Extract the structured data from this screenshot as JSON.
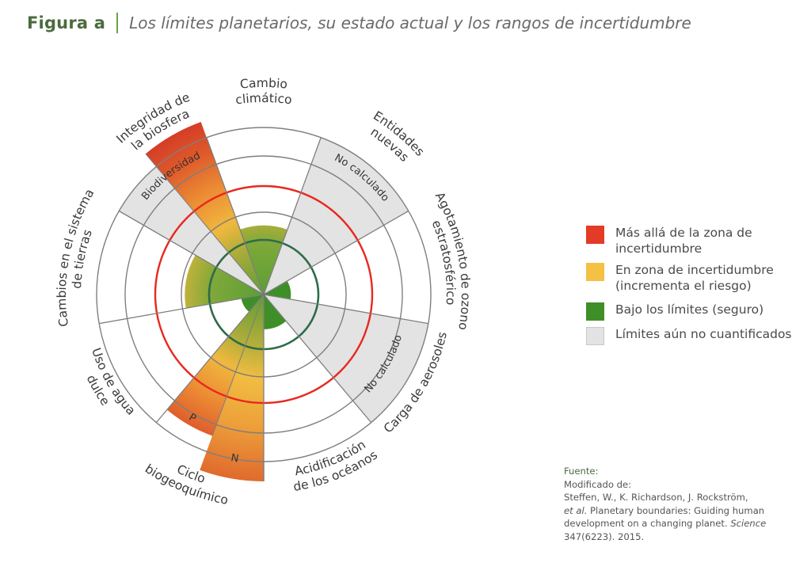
{
  "header": {
    "figure_label": "Figura a",
    "title": "Los límites planetarios, su estado actual y los rangos de incertidumbre"
  },
  "colors": {
    "beyond": "#d93a26",
    "uncertainty": "#f2bf3f",
    "safe": "#3f8f28",
    "not_quantified": "#e3e3e3",
    "boundary_ring": "#e8281e",
    "safe_ring": "#2e6b4a",
    "grid": "#7f7f7f",
    "title_green": "#4a6b3f"
  },
  "diagram": {
    "sectors": [
      {
        "id": "climate",
        "label_lines": [
          "Cambio",
          "climático"
        ],
        "status": "uncertainty",
        "level": 0.47
      },
      {
        "id": "novel-entities",
        "label_lines": [
          "Entidades",
          "nuevas"
        ],
        "status": "not_quantified",
        "inner_label": "No calculado"
      },
      {
        "id": "ozone",
        "label_lines": [
          "Agotamiento de ozono",
          "estratosférico"
        ],
        "status": "safe",
        "level": 0.25
      },
      {
        "id": "aerosols",
        "label_lines": [
          "Carga de aerosoles"
        ],
        "status": "not_quantified",
        "inner_label": "No calculado"
      },
      {
        "id": "ocean-acidification",
        "label_lines": [
          "Acidificación",
          "de los océanos"
        ],
        "status": "safe",
        "level": 0.32
      },
      {
        "id": "biogeochemical",
        "label_lines": [
          "Ciclo",
          "biogeoquímico"
        ],
        "status": "beyond",
        "sub": [
          {
            "label": "N",
            "level": 1.12
          },
          {
            "label": "P",
            "level": 0.9
          }
        ]
      },
      {
        "id": "freshwater",
        "label_lines": [
          "Uso de agua",
          "dulce"
        ],
        "status": "safe",
        "level": 0.21
      },
      {
        "id": "land-system",
        "label_lines": [
          "Cambios en el sistema",
          "de tierras"
        ],
        "status": "uncertainty",
        "level": 0.56
      },
      {
        "id": "biosphere-integrity",
        "label_lines": [
          "Integridad de",
          "la biosfera"
        ],
        "status": "beyond",
        "sub": [
          {
            "label": "Biodiversidad",
            "level": 1.1
          }
        ]
      }
    ]
  },
  "legend": {
    "items": [
      {
        "status": "beyond",
        "label_lines": [
          "Más allá de la zona de",
          "incertidumbre"
        ]
      },
      {
        "status": "uncertainty",
        "label_lines": [
          "En zona de incertidumbre",
          "(incrementa el riesgo)"
        ]
      },
      {
        "status": "safe",
        "label_lines": [
          "Bajo los límites (seguro)"
        ]
      },
      {
        "status": "not_quantified",
        "label_lines": [
          "Límites aún no cuantificados"
        ]
      }
    ]
  },
  "source": {
    "heading": "Fuente:",
    "line1": "Modificado de:",
    "line2": "Steffen, W., K. Richardson, J. Rockström,",
    "line3_italic": "et al.",
    "line3_rest": " Planetary boundaries: Guiding human",
    "line4_rest": "development on a changing planet. ",
    "line4_italic": "Science",
    "line5": "347(6223). 2015."
  }
}
